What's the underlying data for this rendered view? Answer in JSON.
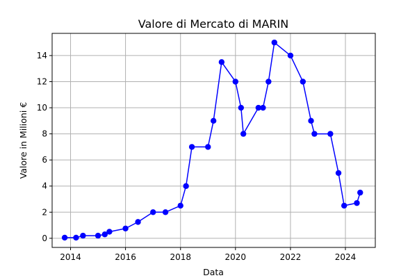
{
  "chart_data": {
    "type": "line",
    "title": "Valore di Mercato di MARIN",
    "xlabel": "Data",
    "ylabel": "Valore in Milioni €",
    "x_axis": "date",
    "xlim": [
      "2013-05-01",
      "2025-02-01"
    ],
    "ylim": [
      -0.7,
      15.7
    ],
    "x_ticks": [
      "2014",
      "2016",
      "2018",
      "2020",
      "2022",
      "2024"
    ],
    "y_ticks": [
      0,
      2,
      4,
      6,
      8,
      10,
      12,
      14
    ],
    "grid": true,
    "legend": "none",
    "line_color": "#0000ff",
    "series": [
      {
        "x": [
          "2013-10-15",
          "2014-03-15",
          "2014-06-15",
          "2015-01-01",
          "2015-04-01",
          "2015-06-01",
          "2016-01-01",
          "2016-06-15",
          "2017-01-01",
          "2017-06-15",
          "2018-01-01",
          "2018-03-15",
          "2018-06-01",
          "2019-01-01",
          "2019-03-15",
          "2019-07-01",
          "2020-01-01",
          "2020-03-15",
          "2020-04-15",
          "2020-11-01",
          "2021-01-01",
          "2021-03-15",
          "2021-06-01",
          "2022-01-01",
          "2022-06-15",
          "2022-10-01",
          "2022-11-15",
          "2023-06-15",
          "2023-10-01",
          "2023-12-15",
          "2024-06-01",
          "2024-07-15"
        ],
        "y": [
          0.05,
          0.05,
          0.2,
          0.2,
          0.3,
          0.5,
          0.75,
          1.25,
          2,
          2,
          2.5,
          4,
          7,
          7,
          9,
          13.5,
          12,
          10,
          8,
          10,
          10,
          12,
          15,
          14,
          12,
          9,
          8,
          8,
          5,
          2.5,
          2.7,
          3.5
        ]
      }
    ]
  }
}
